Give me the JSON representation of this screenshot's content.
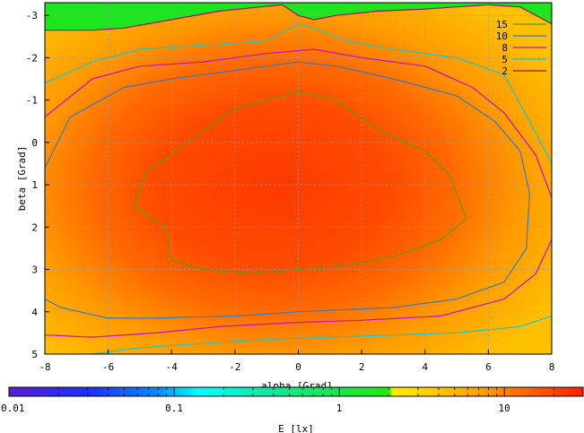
{
  "chart_data": {
    "type": "heatmap",
    "xlabel": "alpha [Grad]",
    "ylabel": "beta [Grad]",
    "xlim": [
      -8,
      8
    ],
    "ylim": [
      -3.3,
      5
    ],
    "y_inverted": true,
    "grid": true,
    "x_ticks": [
      -8,
      -6,
      -4,
      -2,
      0,
      2,
      4,
      6,
      8
    ],
    "y_ticks": [
      -3,
      -2,
      -1,
      0,
      1,
      2,
      3,
      4,
      5
    ],
    "colorbar": {
      "label": "E [lx]",
      "scale": "log",
      "range": [
        0.01,
        30
      ],
      "tick_labels": [
        "0.01",
        "0.1",
        "1",
        "10"
      ],
      "tick_values": [
        0.01,
        0.1,
        1,
        10
      ],
      "colors": [
        "#5a1ecf",
        "#0a4cff",
        "#00e6ff",
        "#12e87a",
        "#1ee60a",
        "#ffee00",
        "#ff9a00",
        "#ff1a00"
      ]
    },
    "heatmap": {
      "center_alpha": -0.5,
      "center_beta": 1.2,
      "peak_lx": 18,
      "region_above_2lx_color": "#1ee61e",
      "background_color_orange": "#ffa800"
    },
    "contours": [
      {
        "name": "15",
        "level": 15,
        "color": "#5a9a1a",
        "points": [
          [
            -4.2,
            2.0
          ],
          [
            -5.2,
            1.5
          ],
          [
            -4.8,
            0.7
          ],
          [
            -3.5,
            0.0
          ],
          [
            -2.0,
            -0.8
          ],
          [
            0.0,
            -1.2
          ],
          [
            1.2,
            -1.0
          ],
          [
            2.5,
            -0.3
          ],
          [
            4.0,
            0.2
          ],
          [
            4.8,
            0.8
          ],
          [
            5.3,
            1.8
          ],
          [
            4.5,
            2.3
          ],
          [
            3.0,
            2.7
          ],
          [
            1.5,
            2.9
          ],
          [
            0.0,
            3.0
          ],
          [
            -1.5,
            3.1
          ],
          [
            -3.0,
            3.0
          ],
          [
            -4.0,
            2.8
          ]
        ]
      },
      {
        "name": "10",
        "level": 10,
        "color": "#3a78b8",
        "points": [
          [
            -8,
            0.6
          ],
          [
            -7.2,
            -0.6
          ],
          [
            -5.5,
            -1.3
          ],
          [
            -4.0,
            -1.5
          ],
          [
            -2.0,
            -1.7
          ],
          [
            0.0,
            -1.9
          ],
          [
            1.2,
            -1.8
          ],
          [
            3.0,
            -1.5
          ],
          [
            5.0,
            -1.1
          ],
          [
            6.2,
            -0.5
          ],
          [
            7.0,
            0.2
          ],
          [
            7.3,
            1.2
          ],
          [
            7.2,
            2.5
          ],
          [
            6.5,
            3.3
          ],
          [
            5.0,
            3.7
          ],
          [
            3.0,
            3.9
          ],
          [
            0.0,
            4.0
          ],
          [
            -2.0,
            4.1
          ],
          [
            -4.5,
            4.15
          ],
          [
            -6.0,
            4.15
          ],
          [
            -7.5,
            3.9
          ],
          [
            -8,
            3.7
          ]
        ]
      },
      {
        "name": "8",
        "level": 8,
        "color": "#c010c0",
        "points": [
          [
            -8,
            -0.6
          ],
          [
            -6.5,
            -1.5
          ],
          [
            -5.0,
            -1.8
          ],
          [
            -3.0,
            -1.9
          ],
          [
            -1.0,
            -2.1
          ],
          [
            0.5,
            -2.2
          ],
          [
            2.0,
            -2.0
          ],
          [
            4.0,
            -1.8
          ],
          [
            5.5,
            -1.3
          ],
          [
            6.5,
            -0.7
          ],
          [
            7.5,
            0.3
          ],
          [
            8.0,
            1.3
          ],
          [
            8.0,
            2.3
          ],
          [
            7.5,
            3.1
          ],
          [
            6.5,
            3.7
          ],
          [
            4.5,
            4.1
          ],
          [
            2.0,
            4.2
          ],
          [
            0.0,
            4.25
          ],
          [
            -2.5,
            4.35
          ],
          [
            -4.5,
            4.5
          ],
          [
            -6.5,
            4.6
          ],
          [
            -8,
            4.55
          ]
        ]
      },
      {
        "name": "5",
        "level": 5,
        "color": "#18c8c8",
        "points": [
          [
            -8,
            -1.4
          ],
          [
            -6.5,
            -1.9
          ],
          [
            -5.0,
            -2.2
          ],
          [
            -3.0,
            -2.3
          ],
          [
            -1.0,
            -2.4
          ],
          [
            0.0,
            -2.8
          ],
          [
            0.5,
            -2.7
          ],
          [
            1.5,
            -2.4
          ],
          [
            3.0,
            -2.2
          ],
          [
            5.0,
            -2.0
          ],
          [
            6.5,
            -1.6
          ],
          [
            7.3,
            -0.5
          ],
          [
            8.0,
            0.5
          ]
        ]
      },
      {
        "name": "5b",
        "level": 5,
        "color": "#18c8c8",
        "points": [
          [
            -6.5,
            5.0
          ],
          [
            -5.0,
            4.85
          ],
          [
            -3.0,
            4.75
          ],
          [
            -1.0,
            4.65
          ],
          [
            1.0,
            4.6
          ],
          [
            3.0,
            4.55
          ],
          [
            5.0,
            4.5
          ],
          [
            7.0,
            4.35
          ],
          [
            8.0,
            4.1
          ]
        ]
      },
      {
        "name": "2",
        "level": 2,
        "color": "#a01060",
        "points": [
          [
            -8,
            -2.65
          ],
          [
            -6.5,
            -2.65
          ],
          [
            -5.5,
            -2.7
          ],
          [
            -4.0,
            -2.9
          ],
          [
            -2.5,
            -3.1
          ],
          [
            -1.2,
            -3.2
          ],
          [
            -0.5,
            -3.25
          ],
          [
            0.0,
            -3.0
          ],
          [
            0.5,
            -2.9
          ],
          [
            1.2,
            -3.0
          ],
          [
            2.5,
            -3.1
          ],
          [
            4.0,
            -3.15
          ],
          [
            5.0,
            -3.2
          ],
          [
            6.0,
            -3.25
          ],
          [
            7.0,
            -3.2
          ],
          [
            8.0,
            -2.8
          ]
        ]
      }
    ],
    "legend": {
      "position": "top-right",
      "entries": [
        {
          "label": "15",
          "color": "#5a9a1a"
        },
        {
          "label": "10",
          "color": "#3a78b8"
        },
        {
          "label": "8",
          "color": "#c010c0"
        },
        {
          "label": "5",
          "color": "#18c8c8"
        },
        {
          "label": "2",
          "color": "#a01060"
        }
      ]
    }
  }
}
